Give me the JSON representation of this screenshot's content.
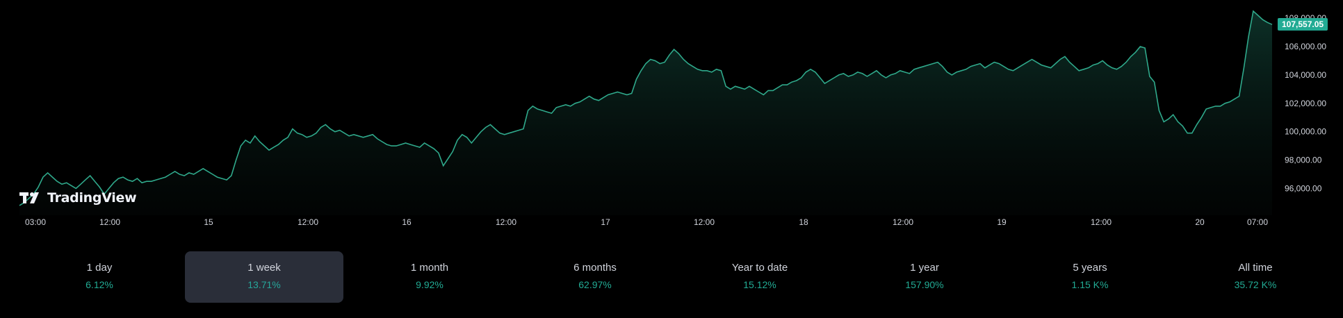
{
  "brand": {
    "logo_text": "TradingView"
  },
  "current_price": "107,557.05",
  "colors": {
    "line": "#2fa98b",
    "price_tag": "#22ab94",
    "positive": "#22ab94",
    "active_tab_bg": "#2a2e39",
    "background": "#000000"
  },
  "chart_data": {
    "type": "area",
    "x_tick_labels": [
      "03:00",
      "12:00",
      "15",
      "12:00",
      "16",
      "12:00",
      "17",
      "12:00",
      "18",
      "12:00",
      "19",
      "12:00",
      "20",
      "07:00"
    ],
    "y_tick_labels": [
      "108,000.00",
      "106,000.00",
      "104,000.00",
      "102,000.00",
      "100,000.00",
      "98,000.00",
      "96,000.00"
    ],
    "y_ticks": [
      108000,
      106000,
      104000,
      102000,
      100000,
      98000,
      96000
    ],
    "ylim": [
      94600,
      108500
    ],
    "last_value": 107557.05,
    "grid": false,
    "series": [
      {
        "values": [
          94800,
          95000,
          95300,
          95600,
          96100,
          96800,
          97100,
          96800,
          96500,
          96300,
          96400,
          96200,
          96000,
          96300,
          96600,
          96900,
          96500,
          96100,
          95600,
          96000,
          96400,
          96700,
          96800,
          96600,
          96500,
          96700,
          96400,
          96500,
          96500,
          96600,
          96700,
          96800,
          97000,
          97200,
          97000,
          96900,
          97100,
          97000,
          97200,
          97400,
          97200,
          97000,
          96800,
          96700,
          96600,
          96900,
          98000,
          99000,
          99400,
          99200,
          99700,
          99300,
          99000,
          98700,
          98900,
          99100,
          99400,
          99600,
          100200,
          99900,
          99800,
          99600,
          99700,
          99900,
          100300,
          100500,
          100200,
          100000,
          100100,
          99900,
          99700,
          99800,
          99700,
          99600,
          99700,
          99800,
          99500,
          99300,
          99100,
          99000,
          99000,
          99100,
          99200,
          99100,
          99000,
          98900,
          99200,
          99000,
          98800,
          98500,
          97600,
          98100,
          98600,
          99400,
          99800,
          99600,
          99200,
          99600,
          100000,
          100300,
          100500,
          100200,
          99900,
          99800,
          99900,
          100000,
          100100,
          100200,
          101500,
          101800,
          101600,
          101500,
          101400,
          101300,
          101700,
          101800,
          101900,
          101800,
          102000,
          102100,
          102300,
          102500,
          102300,
          102200,
          102400,
          102600,
          102700,
          102800,
          102700,
          102600,
          102700,
          103700,
          104300,
          104800,
          105100,
          105000,
          104800,
          104900,
          105400,
          105800,
          105500,
          105100,
          104800,
          104600,
          104400,
          104300,
          104300,
          104200,
          104400,
          104300,
          103200,
          103000,
          103200,
          103100,
          103000,
          103200,
          103000,
          102800,
          102600,
          102900,
          102900,
          103100,
          103300,
          103300,
          103500,
          103600,
          103800,
          104200,
          104400,
          104200,
          103800,
          103400,
          103600,
          103800,
          104000,
          104100,
          103900,
          104000,
          104200,
          104100,
          103900,
          104100,
          104300,
          104000,
          103800,
          104000,
          104100,
          104300,
          104200,
          104100,
          104400,
          104500,
          104600,
          104700,
          104800,
          104900,
          104600,
          104200,
          104000,
          104200,
          104300,
          104400,
          104600,
          104700,
          104800,
          104500,
          104700,
          104900,
          104800,
          104600,
          104400,
          104300,
          104500,
          104700,
          104900,
          105100,
          104900,
          104700,
          104600,
          104500,
          104800,
          105100,
          105300,
          104900,
          104600,
          104300,
          104400,
          104500,
          104700,
          104800,
          105000,
          104700,
          104500,
          104400,
          104600,
          104900,
          105300,
          105600,
          106000,
          105900,
          103900,
          103500,
          101500,
          100700,
          100900,
          101200,
          100700,
          100400,
          99900,
          99900,
          100500,
          101000,
          101600,
          101700,
          101800,
          101800,
          102000,
          102100,
          102300,
          102500,
          104500,
          106700,
          108500,
          108200,
          107900,
          107700,
          107557
        ]
      }
    ]
  },
  "periods": [
    {
      "label": "1 day",
      "change": "6.12%",
      "active": false
    },
    {
      "label": "1 week",
      "change": "13.71%",
      "active": true
    },
    {
      "label": "1 month",
      "change": "9.92%",
      "active": false
    },
    {
      "label": "6 months",
      "change": "62.97%",
      "active": false
    },
    {
      "label": "Year to date",
      "change": "15.12%",
      "active": false
    },
    {
      "label": "1 year",
      "change": "157.90%",
      "active": false
    },
    {
      "label": "5 years",
      "change": "1.15 K%",
      "active": false
    },
    {
      "label": "All time",
      "change": "35.72 K%",
      "active": false
    }
  ]
}
